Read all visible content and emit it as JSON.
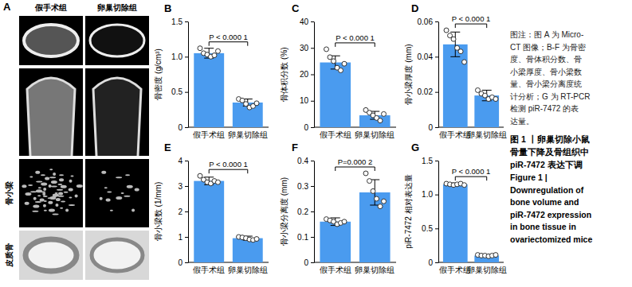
{
  "chart_data": [
    {
      "type": "bar",
      "title": "B",
      "ylabel": "骨密度 (g/cm³)",
      "categories": [
        "假手术组",
        "卵巢切除组"
      ],
      "values": [
        1.05,
        0.35
      ],
      "errors": [
        0.07,
        0.05
      ],
      "points": [
        [
          1.12,
          1.05,
          1.03,
          1.0,
          1.02,
          1.08
        ],
        [
          0.4,
          0.38,
          0.33,
          0.28,
          0.3,
          0.34
        ]
      ],
      "color": "#4a9bef",
      "ylim": [
        0,
        1.5
      ],
      "yticks": [
        0,
        0.5,
        {
          "value": 1,
          "label": "1.0"
        },
        1.5
      ],
      "annotation": "P < 0.000 1"
    },
    {
      "type": "bar",
      "title": "C",
      "ylabel": "骨体积分数 (%)",
      "categories": [
        "假手术组",
        "卵巢切除组"
      ],
      "values": [
        24.5,
        4.5
      ],
      "errors": [
        2.5,
        1.5
      ],
      "points": [
        [
          29.5,
          26.5,
          25,
          22.5,
          21.5,
          24
        ],
        [
          6.5,
          5.5,
          4.5,
          3.5,
          2.5,
          5
        ]
      ],
      "color": "#4a9bef",
      "ylim": [
        0,
        40
      ],
      "yticks": [
        0,
        10,
        20,
        30,
        40
      ],
      "annotation": "P < 0.000 1"
    },
    {
      "type": "bar",
      "title": "D",
      "ylabel": "骨小梁厚度 (mm)",
      "categories": [
        "假手术组",
        "卵巢切除组"
      ],
      "values": [
        0.047,
        0.018
      ],
      "errors": [
        0.007,
        0.003
      ],
      "points": [
        [
          0.055,
          0.052,
          0.05,
          0.045,
          0.043,
          0.037
        ],
        [
          0.021,
          0.019,
          0.018,
          0.016,
          0.017,
          0.016
        ]
      ],
      "color": "#4a9bef",
      "ylim": [
        0,
        0.06
      ],
      "yticks": [
        0,
        0.02,
        0.04,
        0.06
      ],
      "annotation": "P < 0.000 1"
    },
    {
      "type": "bar",
      "title": "E",
      "ylabel": "骨小梁数 (1/mm)",
      "categories": [
        "假手术组",
        "卵巢切除组"
      ],
      "values": [
        3.2,
        0.95
      ],
      "errors": [
        0.15,
        0.08
      ],
      "points": [
        [
          3.4,
          3.25,
          3.15,
          3.1,
          3.2,
          3.15
        ],
        [
          1.0,
          0.98,
          0.95,
          0.9,
          0.88,
          0.92
        ]
      ],
      "color": "#4a9bef",
      "ylim": [
        0,
        4
      ],
      "yticks": [
        0,
        1,
        2,
        3,
        4
      ],
      "annotation": "P < 0.000 1"
    },
    {
      "type": "bar",
      "title": "F",
      "ylabel": "骨小梁分离度 (mm)",
      "categories": [
        "假手术组",
        "卵巢切除组"
      ],
      "values": [
        0.16,
        0.275
      ],
      "errors": [
        0.015,
        0.05
      ],
      "points": [
        [
          0.17,
          0.165,
          0.16,
          0.15,
          0.155,
          0.16
        ],
        [
          0.35,
          0.32,
          0.28,
          0.25,
          0.22,
          0.24
        ]
      ],
      "color": "#4a9bef",
      "ylim": [
        0,
        0.4
      ],
      "yticks": [
        0,
        0.1,
        0.2,
        0.3,
        0.4
      ],
      "annotation": "P=0.000 2"
    },
    {
      "type": "bar",
      "title": "G",
      "ylabel": "piR-7472 相对表达量",
      "categories": [
        "假手术组",
        "卵巢切除组"
      ],
      "values": [
        1.15,
        0.1
      ],
      "errors": [
        0.02,
        0.01
      ],
      "points": [
        [
          1.16,
          1.15,
          1.14,
          1.15,
          1.16,
          1.14
        ],
        [
          0.11,
          0.1,
          0.1,
          0.09,
          0.1,
          0.11
        ]
      ],
      "color": "#4a9bef",
      "ylim": [
        0,
        1.5
      ],
      "yticks": [
        0,
        0.5,
        {
          "value": 1,
          "label": "1.0"
        },
        1.5
      ],
      "annotation": "P < 0.000 1"
    }
  ],
  "panel_a": {
    "label": "A",
    "columns": [
      "假手术组",
      "卵巢切除组"
    ],
    "rows": [
      "骨小梁",
      "皮质骨"
    ]
  },
  "caption": {
    "note": [
      "图注：图 A 为 Micro-",
      "CT 图像；B-F 为骨密",
      "度、骨体积分数、骨",
      "小梁厚度、骨小梁数",
      "量、骨小梁分离度统",
      "计分析；G 为 RT-PCR",
      "检测 piR-7472 的表",
      "达量。"
    ],
    "title_cn": [
      "图 1 丨卵巢切除小鼠",
      "骨量下降及骨组织中",
      "piR-7472 表达下调"
    ],
    "title_en": [
      "Figure 1 |",
      "Downregulation of",
      "bone volume and",
      "piR-7472 expression",
      "in bone tissue in",
      "ovariectomized mice"
    ]
  }
}
